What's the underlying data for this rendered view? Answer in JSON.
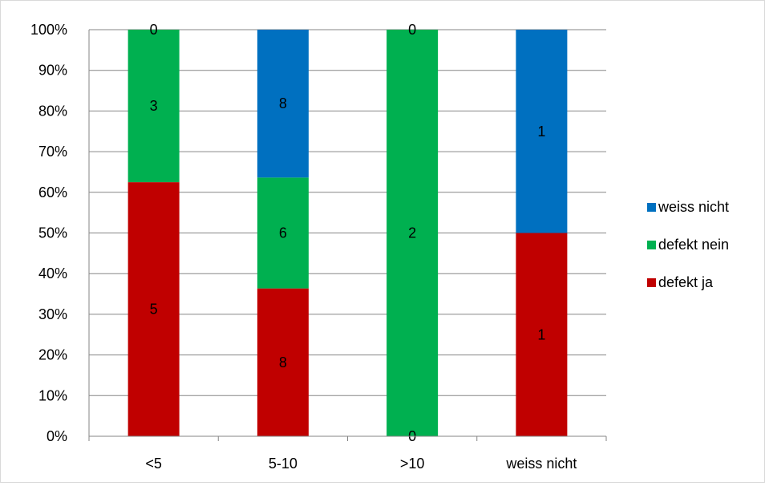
{
  "chart_data": {
    "type": "bar",
    "stacked": true,
    "percent": true,
    "categories": [
      "<5",
      "5-10",
      ">10",
      "weiss nicht"
    ],
    "series": [
      {
        "name": "defekt ja",
        "color": "#c00000",
        "values": [
          5,
          8,
          0,
          1
        ],
        "labels": [
          "5",
          "8",
          "",
          "1"
        ]
      },
      {
        "name": "defekt nein",
        "color": "#00b050",
        "values": [
          3,
          6,
          2,
          0
        ],
        "labels": [
          "3",
          "6",
          "2",
          ""
        ]
      },
      {
        "name": "weiss nicht",
        "color": "#0070c0",
        "values": [
          0,
          8,
          0,
          1
        ],
        "labels": [
          "0",
          "8",
          "0",
          "1"
        ]
      }
    ],
    "extra_labels": [
      {
        "category": ">10",
        "series": "defekt ja",
        "text": "0"
      }
    ],
    "yticks": [
      "0%",
      "10%",
      "20%",
      "30%",
      "40%",
      "50%",
      "60%",
      "70%",
      "80%",
      "90%",
      "100%"
    ],
    "ylim": [
      0,
      100
    ],
    "grid": true,
    "legend": {
      "position": "right",
      "items": [
        "weiss nicht",
        "defekt nein",
        "defekt ja"
      ]
    }
  }
}
